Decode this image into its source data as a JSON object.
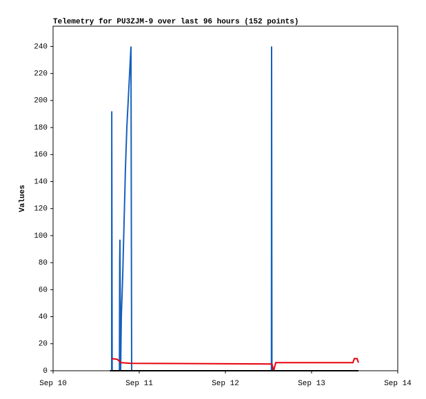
{
  "chart_data": {
    "type": "line",
    "title": "Telemetry for PU3ZJM-9 over last 96 hours (152 points)",
    "y_label": "Values",
    "xlim": [
      0,
      4
    ],
    "xticks": [
      {
        "value": 0,
        "label": "Sep 10"
      },
      {
        "value": 1,
        "label": "Sep 11"
      },
      {
        "value": 2,
        "label": "Sep 12"
      },
      {
        "value": 3,
        "label": "Sep 13"
      },
      {
        "value": 4,
        "label": "Sep 14"
      }
    ],
    "ylim": [
      0,
      255
    ],
    "yticks": [
      0,
      20,
      40,
      60,
      80,
      100,
      120,
      140,
      160,
      180,
      200,
      220,
      240
    ],
    "series": [
      {
        "color": "#000000",
        "x": [
          0.66,
          3.544
        ],
        "values": [
          0,
          0
        ]
      },
      {
        "color": "#1560bd",
        "x": [
          0.68,
          0.681,
          0.686,
          0.77,
          0.773,
          0.776,
          0.784,
          0.792,
          0.808,
          0.824,
          0.84,
          0.856,
          0.872,
          0.888,
          0.904,
          0.912,
          2.534,
          2.536,
          2.54
        ],
        "values": [
          0,
          192,
          0,
          0,
          80,
          97,
          0,
          40,
          70,
          110,
          150,
          180,
          200,
          220,
          240,
          0,
          0,
          240,
          0
        ]
      },
      {
        "color": "#e8000b",
        "x": [
          0.68,
          0.744,
          0.79,
          0.9,
          2.54,
          2.56,
          2.584,
          3.48,
          3.496,
          3.528,
          3.544
        ],
        "values": [
          9,
          8.5,
          6,
          5.5,
          5,
          0,
          6,
          6,
          9,
          9,
          6
        ]
      }
    ]
  }
}
